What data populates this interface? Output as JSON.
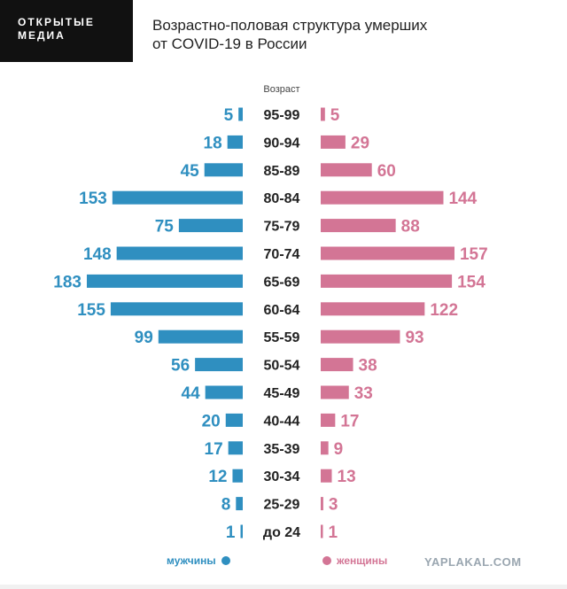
{
  "header": {
    "logo_line1": "ОТКРЫТЫЕ",
    "logo_line2": "МЕДИА",
    "title_line1": "Возрастно-половая структура умерших",
    "title_line2": "от COVID-19 в России",
    "watermark": "YAPLAKAL.COM"
  },
  "colors": {
    "men": "#2f8fc0",
    "women": "#d37595",
    "age_label": "#222222"
  },
  "chart_data": {
    "type": "bar",
    "orientation": "horizontal-pyramid",
    "axis_label": "Возраст",
    "categories": [
      "95-99",
      "90-94",
      "85-89",
      "80-84",
      "75-79",
      "70-74",
      "65-69",
      "60-64",
      "55-59",
      "50-54",
      "45-49",
      "40-44",
      "35-39",
      "30-34",
      "25-29",
      "до 24"
    ],
    "series": [
      {
        "name": "мужчины",
        "side": "left",
        "values": [
          5,
          18,
          45,
          153,
          75,
          148,
          183,
          155,
          99,
          56,
          44,
          20,
          17,
          12,
          8,
          1
        ]
      },
      {
        "name": "женщины",
        "side": "right",
        "values": [
          5,
          29,
          60,
          144,
          88,
          157,
          154,
          122,
          93,
          38,
          33,
          17,
          9,
          13,
          3,
          1
        ]
      }
    ],
    "xlim": [
      0,
      183
    ],
    "grid": false,
    "legend_position": "bottom"
  }
}
